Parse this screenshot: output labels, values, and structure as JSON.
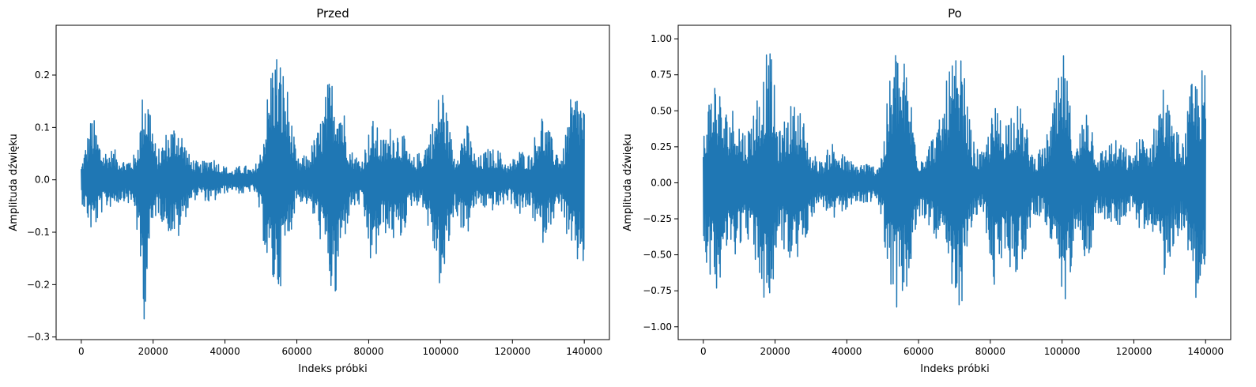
{
  "chart_data": [
    {
      "type": "line",
      "title": "Przed",
      "xlabel": "Indeks próbki",
      "ylabel": "Amplituda dźwięku",
      "xlim": [
        -7000,
        147000
      ],
      "ylim": [
        -0.305,
        0.295
      ],
      "xticks": [
        0,
        20000,
        40000,
        60000,
        80000,
        100000,
        120000,
        140000
      ],
      "xtick_labels": [
        "0",
        "20000",
        "40000",
        "60000",
        "80000",
        "100000",
        "120000",
        "140000"
      ],
      "yticks": [
        -0.3,
        -0.2,
        -0.1,
        0.0,
        0.1,
        0.2
      ],
      "ytick_labels": [
        "−0.3",
        "−0.2",
        "−0.1",
        "0.0",
        "0.1",
        "0.2"
      ],
      "grid": false,
      "color": "#1f77b4",
      "series": [
        {
          "x": [
            0,
            3000,
            6000,
            9000,
            12000,
            15000,
            16500,
            17500,
            19000,
            21000,
            24000,
            27000,
            30000,
            33000,
            36000,
            39000,
            42000,
            45000,
            48000,
            50000,
            52000,
            53500,
            55000,
            57000,
            60000,
            63000,
            66000,
            69000,
            70500,
            72000,
            75000,
            78000,
            81000,
            84000,
            86500,
            89000,
            92000,
            95000,
            98000,
            100500,
            102000,
            104000,
            107000,
            110000,
            113000,
            116000,
            119000,
            122000,
            125000,
            128000,
            131000,
            134000,
            136000,
            138000,
            140000
          ],
          "max": [
            0.03,
            0.13,
            0.06,
            0.06,
            0.04,
            0.05,
            0.12,
            0.21,
            0.17,
            0.05,
            0.1,
            0.12,
            0.05,
            0.03,
            0.05,
            0.03,
            0.02,
            0.03,
            0.02,
            0.06,
            0.18,
            0.27,
            0.25,
            0.2,
            0.04,
            0.05,
            0.1,
            0.2,
            0.2,
            0.19,
            0.06,
            0.04,
            0.12,
            0.08,
            0.11,
            0.1,
            0.04,
            0.06,
            0.12,
            0.2,
            0.12,
            0.05,
            0.12,
            0.04,
            0.06,
            0.06,
            0.03,
            0.06,
            0.05,
            0.14,
            0.08,
            0.05,
            0.15,
            0.18,
            0.16
          ],
          "min": [
            -0.04,
            -0.11,
            -0.06,
            -0.05,
            -0.04,
            -0.06,
            -0.2,
            -0.27,
            -0.15,
            -0.06,
            -0.1,
            -0.12,
            -0.05,
            -0.03,
            -0.05,
            -0.03,
            -0.02,
            -0.03,
            -0.02,
            -0.08,
            -0.19,
            -0.22,
            -0.22,
            -0.15,
            -0.04,
            -0.05,
            -0.1,
            -0.2,
            -0.28,
            -0.16,
            -0.06,
            -0.05,
            -0.19,
            -0.1,
            -0.12,
            -0.12,
            -0.05,
            -0.05,
            -0.14,
            -0.24,
            -0.15,
            -0.06,
            -0.12,
            -0.05,
            -0.06,
            -0.06,
            -0.04,
            -0.07,
            -0.06,
            -0.13,
            -0.08,
            -0.06,
            -0.16,
            -0.17,
            -0.17
          ]
        }
      ]
    },
    {
      "type": "line",
      "title": "Po",
      "xlabel": "Indeks próbki",
      "ylabel": "Amplituda dźwięku",
      "xlim": [
        -7000,
        147000
      ],
      "ylim": [
        -1.089,
        1.094
      ],
      "xticks": [
        0,
        20000,
        40000,
        60000,
        80000,
        100000,
        120000,
        140000
      ],
      "xtick_labels": [
        "0",
        "20000",
        "40000",
        "60000",
        "80000",
        "100000",
        "120000",
        "140000"
      ],
      "yticks": [
        -1.0,
        -0.75,
        -0.5,
        -0.25,
        0.0,
        0.25,
        0.5,
        0.75,
        1.0
      ],
      "ytick_labels": [
        "−1.00",
        "−0.75",
        "−0.50",
        "−0.25",
        "0.00",
        "0.25",
        "0.50",
        "0.75",
        "1.00"
      ],
      "grid": false,
      "color": "#1f77b4",
      "series": [
        {
          "x": [
            0,
            3000,
            6000,
            9000,
            12000,
            15000,
            16500,
            17500,
            19000,
            21000,
            24000,
            27000,
            30000,
            33000,
            36000,
            39000,
            42000,
            45000,
            48000,
            50000,
            52000,
            53500,
            55000,
            57000,
            60000,
            63000,
            66000,
            69000,
            70500,
            72000,
            75000,
            78000,
            81000,
            84000,
            86500,
            89000,
            92000,
            95000,
            98000,
            100500,
            102000,
            104000,
            107000,
            110000,
            113000,
            116000,
            119000,
            122000,
            125000,
            128000,
            131000,
            134000,
            136000,
            138000,
            140000
          ],
          "max": [
            0.4,
            0.82,
            0.52,
            0.55,
            0.35,
            0.65,
            0.75,
            0.92,
            0.9,
            0.35,
            0.55,
            0.55,
            0.22,
            0.15,
            0.3,
            0.2,
            0.14,
            0.15,
            0.12,
            0.25,
            0.75,
            1.0,
            0.92,
            0.8,
            0.2,
            0.3,
            0.45,
            0.88,
            0.85,
            0.9,
            0.3,
            0.2,
            0.55,
            0.45,
            0.6,
            0.5,
            0.2,
            0.25,
            0.6,
            0.92,
            0.6,
            0.25,
            0.65,
            0.2,
            0.3,
            0.3,
            0.2,
            0.35,
            0.3,
            0.75,
            0.4,
            0.3,
            0.7,
            0.8,
            0.8
          ],
          "min": [
            -0.45,
            -0.8,
            -0.55,
            -0.5,
            -0.35,
            -0.65,
            -0.75,
            -0.98,
            -0.9,
            -0.35,
            -0.6,
            -0.55,
            -0.25,
            -0.15,
            -0.3,
            -0.2,
            -0.15,
            -0.15,
            -0.12,
            -0.3,
            -0.75,
            -0.88,
            -0.85,
            -0.8,
            -0.25,
            -0.3,
            -0.45,
            -0.85,
            -0.96,
            -0.85,
            -0.3,
            -0.2,
            -0.75,
            -0.5,
            -0.65,
            -0.6,
            -0.22,
            -0.25,
            -0.62,
            -0.95,
            -0.7,
            -0.25,
            -0.6,
            -0.22,
            -0.3,
            -0.3,
            -0.2,
            -0.35,
            -0.3,
            -0.7,
            -0.45,
            -0.3,
            -0.75,
            -0.82,
            -0.8
          ]
        }
      ]
    }
  ]
}
